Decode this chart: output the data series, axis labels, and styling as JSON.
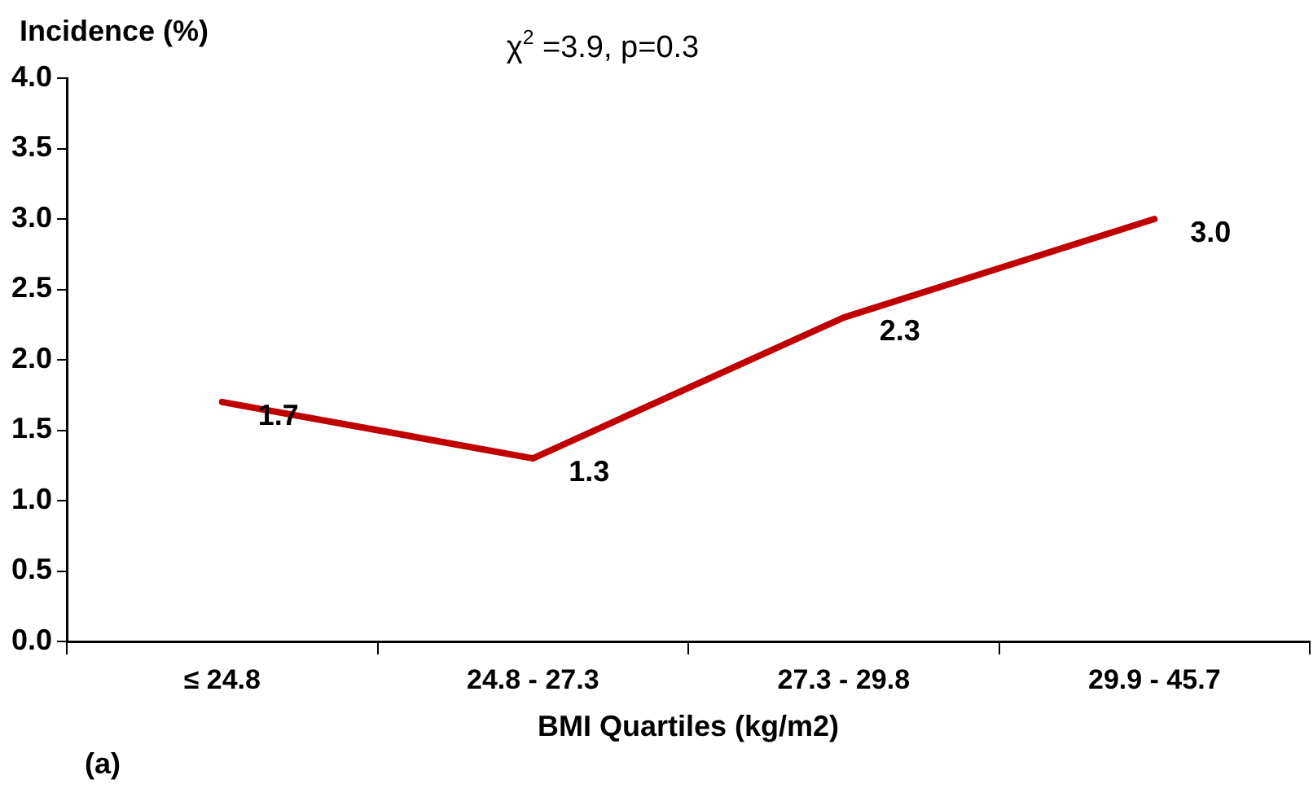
{
  "chart_data": {
    "type": "line",
    "title": "χ$^{2}$ =3.9, p=0.3",
    "ylabel": "Incidence (%)",
    "xlabel": "BMI Quartiles (kg/m2)",
    "categories": [
      "≤ 24.8",
      "24.8 - 27.3",
      "27.3 - 29.8",
      "29.9 - 45.7"
    ],
    "series": [
      {
        "color": "#c00000",
        "values": [
          1.7,
          1.3,
          2.3,
          3.0
        ],
        "value_labels": [
          "1.7",
          "1.3",
          "2.3",
          "3.0"
        ]
      }
    ],
    "ylim": [
      0,
      4
    ],
    "yticks": [
      {
        "value": 0,
        "label": "0.0"
      },
      {
        "value": 0.5,
        "label": "0.5"
      },
      {
        "value": 1,
        "label": "1.0"
      },
      {
        "value": 1.5,
        "label": "1.5"
      },
      {
        "value": 2,
        "label": "2.0"
      },
      {
        "value": 2.5,
        "label": "2.5"
      },
      {
        "value": 3,
        "label": "3.0"
      },
      {
        "value": 3.5,
        "label": "3.5"
      },
      {
        "value": 4,
        "label": "4.0"
      }
    ],
    "marker": "none",
    "line_style": "solid",
    "grid": false,
    "legend": false,
    "annotations": [
      "(a)"
    ]
  }
}
